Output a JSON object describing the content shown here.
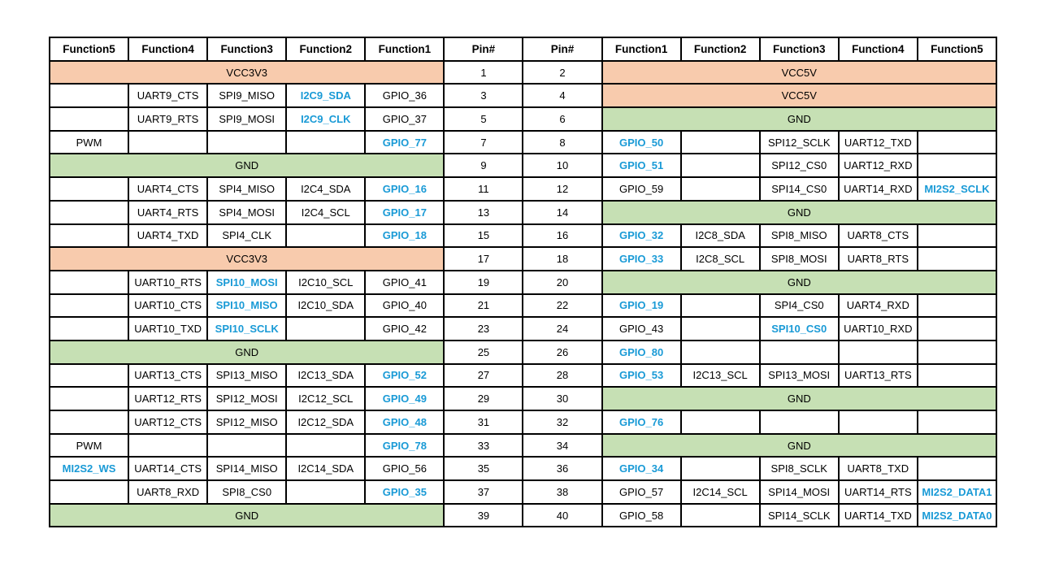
{
  "colors": {
    "power_fill": "#F8CBAD",
    "ground_fill": "#C6E0B4",
    "accent_text": "#199AD6",
    "border": "#000000",
    "text": "#000000"
  },
  "pinout": {
    "headers": [
      "Function5",
      "Function4",
      "Function3",
      "Function2",
      "Function1",
      "Pin#",
      "Pin#",
      "Function1",
      "Function2",
      "Function3",
      "Function4",
      "Function5"
    ],
    "accent_labels": [
      "I2C9_SDA",
      "I2C9_CLK",
      "GPIO_77",
      "GPIO_16",
      "GPIO_17",
      "GPIO_18",
      "SPI10_MOSI",
      "SPI10_MISO",
      "SPI10_SCLK",
      "GPIO_52",
      "GPIO_49",
      "GPIO_48",
      "GPIO_78",
      "MI2S2_WS",
      "GPIO_35",
      "GPIO_50",
      "GPIO_51",
      "MI2S2_SCLK",
      "GPIO_32",
      "GPIO_33",
      "GPIO_19",
      "SPI10_CS0",
      "GPIO_80",
      "GPIO_53",
      "GPIO_76",
      "GPIO_34",
      "MI2S2_DATA1",
      "MI2S2_DATA0"
    ],
    "rows": [
      {
        "pins": [
          "1",
          "2"
        ],
        "left": {
          "span": "VCC3V3",
          "fill": "power"
        },
        "right": {
          "span": "VCC5V",
          "fill": "power"
        }
      },
      {
        "pins": [
          "3",
          "4"
        ],
        "left": {
          "cells": [
            "",
            "UART9_CTS",
            "SPI9_MISO",
            "I2C9_SDA",
            "GPIO_36"
          ]
        },
        "right": {
          "span": "VCC5V",
          "fill": "power"
        }
      },
      {
        "pins": [
          "5",
          "6"
        ],
        "left": {
          "cells": [
            "",
            "UART9_RTS",
            "SPI9_MOSI",
            "I2C9_CLK",
            "GPIO_37"
          ]
        },
        "right": {
          "span": "GND",
          "fill": "ground"
        }
      },
      {
        "pins": [
          "7",
          "8"
        ],
        "left": {
          "cells": [
            "PWM",
            "",
            "",
            "",
            "GPIO_77"
          ]
        },
        "right": {
          "cells": [
            "GPIO_50",
            "",
            "SPI12_SCLK",
            "UART12_TXD",
            ""
          ]
        }
      },
      {
        "pins": [
          "9",
          "10"
        ],
        "left": {
          "span": "GND",
          "fill": "ground"
        },
        "right": {
          "cells": [
            "GPIO_51",
            "",
            "SPI12_CS0",
            "UART12_RXD",
            ""
          ]
        }
      },
      {
        "pins": [
          "11",
          "12"
        ],
        "left": {
          "cells": [
            "",
            "UART4_CTS",
            "SPI4_MISO",
            "I2C4_SDA",
            "GPIO_16"
          ]
        },
        "right": {
          "cells": [
            "GPIO_59",
            "",
            "SPI14_CS0",
            "UART14_RXD",
            "MI2S2_SCLK"
          ]
        }
      },
      {
        "pins": [
          "13",
          "14"
        ],
        "left": {
          "cells": [
            "",
            "UART4_RTS",
            "SPI4_MOSI",
            "I2C4_SCL",
            "GPIO_17"
          ]
        },
        "right": {
          "span": "GND",
          "fill": "ground"
        }
      },
      {
        "pins": [
          "15",
          "16"
        ],
        "left": {
          "cells": [
            "",
            "UART4_TXD",
            "SPI4_CLK",
            "",
            "GPIO_18"
          ]
        },
        "right": {
          "cells": [
            "GPIO_32",
            "I2C8_SDA",
            "SPI8_MISO",
            "UART8_CTS",
            ""
          ]
        }
      },
      {
        "pins": [
          "17",
          "18"
        ],
        "left": {
          "span": "VCC3V3",
          "fill": "power"
        },
        "right": {
          "cells": [
            "GPIO_33",
            "I2C8_SCL",
            "SPI8_MOSI",
            "UART8_RTS",
            ""
          ]
        }
      },
      {
        "pins": [
          "19",
          "20"
        ],
        "left": {
          "cells": [
            "",
            "UART10_RTS",
            "SPI10_MOSI",
            "I2C10_SCL",
            "GPIO_41"
          ]
        },
        "right": {
          "span": "GND",
          "fill": "ground"
        }
      },
      {
        "pins": [
          "21",
          "22"
        ],
        "left": {
          "cells": [
            "",
            "UART10_CTS",
            "SPI10_MISO",
            "I2C10_SDA",
            "GPIO_40"
          ]
        },
        "right": {
          "cells": [
            "GPIO_19",
            "",
            "SPI4_CS0",
            "UART4_RXD",
            ""
          ]
        }
      },
      {
        "pins": [
          "23",
          "24"
        ],
        "left": {
          "cells": [
            "",
            "UART10_TXD",
            "SPI10_SCLK",
            "",
            "GPIO_42"
          ]
        },
        "right": {
          "cells": [
            "GPIO_43",
            "",
            "SPI10_CS0",
            "UART10_RXD",
            ""
          ]
        }
      },
      {
        "pins": [
          "25",
          "26"
        ],
        "left": {
          "span": "GND",
          "fill": "ground"
        },
        "right": {
          "cells": [
            "GPIO_80",
            "",
            "",
            "",
            ""
          ]
        }
      },
      {
        "pins": [
          "27",
          "28"
        ],
        "left": {
          "cells": [
            "",
            "UART13_CTS",
            "SPI13_MISO",
            "I2C13_SDA",
            "GPIO_52"
          ]
        },
        "right": {
          "cells": [
            "GPIO_53",
            "I2C13_SCL",
            "SPI13_MOSI",
            "UART13_RTS",
            ""
          ]
        }
      },
      {
        "pins": [
          "29",
          "30"
        ],
        "left": {
          "cells": [
            "",
            "UART12_RTS",
            "SPI12_MOSI",
            "I2C12_SCL",
            "GPIO_49"
          ]
        },
        "right": {
          "span": "GND",
          "fill": "ground"
        }
      },
      {
        "pins": [
          "31",
          "32"
        ],
        "left": {
          "cells": [
            "",
            "UART12_CTS",
            "SPI12_MISO",
            "I2C12_SDA",
            "GPIO_48"
          ]
        },
        "right": {
          "cells": [
            "GPIO_76",
            "",
            "",
            "",
            ""
          ]
        }
      },
      {
        "pins": [
          "33",
          "34"
        ],
        "left": {
          "cells": [
            "PWM",
            "",
            "",
            "",
            "GPIO_78"
          ]
        },
        "right": {
          "span": "GND",
          "fill": "ground"
        }
      },
      {
        "pins": [
          "35",
          "36"
        ],
        "left": {
          "cells": [
            "MI2S2_WS",
            "UART14_CTS",
            "SPI14_MISO",
            "I2C14_SDA",
            "GPIO_56"
          ]
        },
        "right": {
          "cells": [
            "GPIO_34",
            "",
            "SPI8_SCLK",
            "UART8_TXD",
            ""
          ]
        }
      },
      {
        "pins": [
          "37",
          "38"
        ],
        "left": {
          "cells": [
            "",
            "UART8_RXD",
            "SPI8_CS0",
            "",
            "GPIO_35"
          ]
        },
        "right": {
          "cells": [
            "GPIO_57",
            "I2C14_SCL",
            "SPI14_MOSI",
            "UART14_RTS",
            "MI2S2_DATA1"
          ]
        }
      },
      {
        "pins": [
          "39",
          "40"
        ],
        "left": {
          "span": "GND",
          "fill": "ground"
        },
        "right": {
          "cells": [
            "GPIO_58",
            "",
            "SPI14_SCLK",
            "UART14_TXD",
            "MI2S2_DATA0"
          ]
        }
      }
    ]
  }
}
